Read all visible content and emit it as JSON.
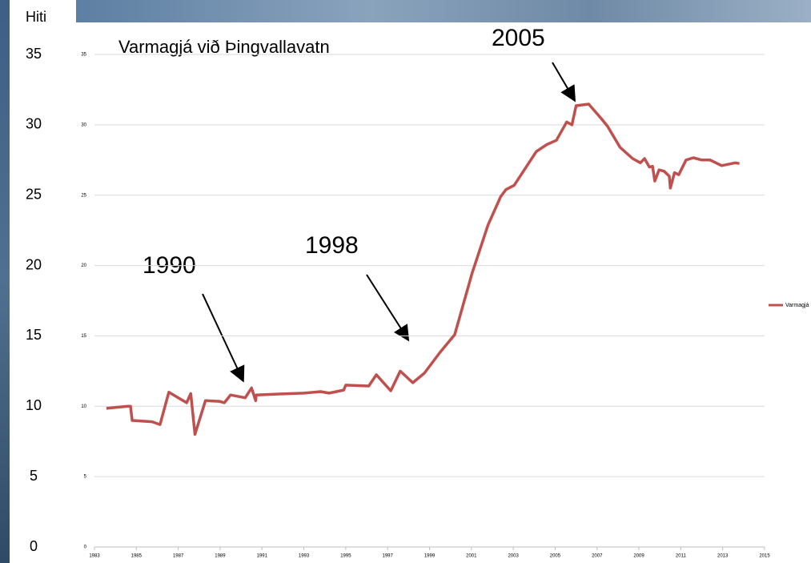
{
  "chart_data": {
    "type": "line",
    "title": "Varmagjá við Þingvallavatn",
    "y_label": "Hiti",
    "annotations": [
      "1990",
      "1998",
      "2005"
    ],
    "x": [
      1983.57,
      1984.6,
      1984.72,
      1984.8,
      1985.75,
      1986.13,
      1986.55,
      1987.4,
      1987.6,
      1987.8,
      1988.3,
      1988.96,
      1989.2,
      1989.5,
      1990.2,
      1990.5,
      1990.7,
      1990.72,
      1991.8,
      1993.0,
      1993.8,
      1994.2,
      1994.9,
      1995.0,
      1996.1,
      1996.46,
      1997.15,
      1997.6,
      1998.2,
      1998.75,
      1999.5,
      2000.2,
      2001.04,
      2001.8,
      2002.4,
      2002.65,
      2003.04,
      2004.1,
      2004.6,
      2005.06,
      2005.55,
      2005.8,
      2006.0,
      2006.6,
      2007.2,
      2007.5,
      2008.1,
      2008.7,
      2009.07,
      2009.27,
      2009.5,
      2009.65,
      2009.76,
      2009.96,
      2010.2,
      2010.45,
      2010.5,
      2010.7,
      2010.9,
      2011.25,
      2011.6,
      2012.0,
      2012.4,
      2012.95,
      2013.6,
      2013.8
    ],
    "series": [
      {
        "name": "Varmagjá",
        "color": "#c0504d",
        "values": [
          9.85,
          10.0,
          10.0,
          8.99,
          8.9,
          8.7,
          11.0,
          10.25,
          10.9,
          8.0,
          10.4,
          10.35,
          10.25,
          10.8,
          10.6,
          11.3,
          10.4,
          10.8,
          10.87,
          10.93,
          11.04,
          10.93,
          11.15,
          11.5,
          11.44,
          12.24,
          11.1,
          12.5,
          11.67,
          12.35,
          13.83,
          15.08,
          19.5,
          22.9,
          24.9,
          25.4,
          25.7,
          28.1,
          28.6,
          28.9,
          30.2,
          30.0,
          31.36,
          31.47,
          30.45,
          29.9,
          28.4,
          27.6,
          27.3,
          27.6,
          27.0,
          27.05,
          26.0,
          26.8,
          26.7,
          26.35,
          25.5,
          26.6,
          26.45,
          27.5,
          27.66,
          27.5,
          27.5,
          27.1,
          27.3,
          27.25
        ]
      }
    ],
    "xlim": [
      1983,
      2015
    ],
    "xticks": [
      1983,
      1985,
      1987,
      1989,
      1991,
      1993,
      1995,
      1997,
      1999,
      2001,
      2003,
      2005,
      2007,
      2009,
      2011,
      2013,
      2015
    ],
    "ylim": [
      0,
      35
    ],
    "yticks": [
      0,
      5,
      10,
      15,
      20,
      25,
      30,
      35
    ],
    "grid": true,
    "legend": "right"
  }
}
